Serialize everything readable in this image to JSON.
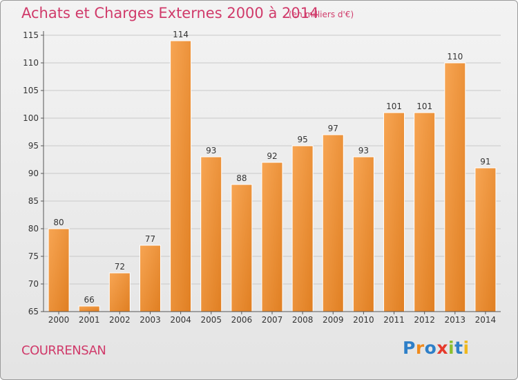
{
  "header": {
    "title": "Achats et Charges Externes 2000 à 2014",
    "subtitle": "(en milliers d'€)"
  },
  "footer": {
    "commune": "COURRENSAN",
    "logo_letters": [
      {
        "char": "P",
        "color": "#2e7fc8"
      },
      {
        "char": "r",
        "color": "#f08a1c"
      },
      {
        "char": "o",
        "color": "#2e7fc8"
      },
      {
        "char": "x",
        "color": "#e63a2c"
      },
      {
        "char": "i",
        "color": "#8cbf2e"
      },
      {
        "char": "t",
        "color": "#2e7fc8"
      },
      {
        "char": "i",
        "color": "#f0b81c"
      }
    ]
  },
  "colors": {
    "bar_light": "#f7a553",
    "bar_dark": "#e07f22",
    "grid": "#c8c8c8",
    "axis": "#555555",
    "text": "#333333",
    "accent": "#d03a6a"
  },
  "chart_data": {
    "type": "bar",
    "categories": [
      "2000",
      "2001",
      "2002",
      "2003",
      "2004",
      "2005",
      "2006",
      "2007",
      "2008",
      "2009",
      "2010",
      "2011",
      "2012",
      "2013",
      "2014"
    ],
    "values": [
      80,
      66,
      72,
      77,
      114,
      93,
      88,
      92,
      95,
      97,
      93,
      101,
      101,
      110,
      91
    ],
    "ylim": [
      65,
      115
    ],
    "yticks": [
      65,
      70,
      75,
      80,
      85,
      90,
      95,
      100,
      105,
      110,
      115
    ],
    "grid": true,
    "xlabel": "",
    "ylabel": ""
  }
}
